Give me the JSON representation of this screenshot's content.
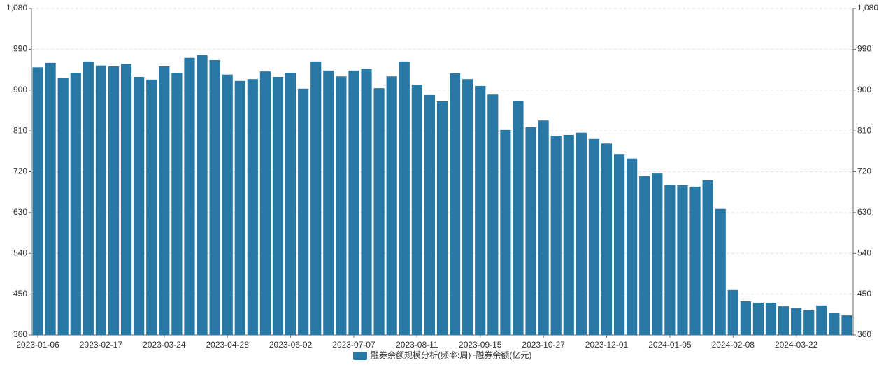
{
  "chart_data": {
    "type": "bar",
    "series": [
      {
        "name": "融券余额规模分析(频率:周)~融券余额(亿元)",
        "color": "#2778a5",
        "values": [
          950,
          960,
          926,
          938,
          963,
          954,
          952,
          958,
          929,
          923,
          952,
          938,
          971,
          977,
          966,
          934,
          920,
          924,
          941,
          929,
          938,
          903,
          963,
          943,
          930,
          943,
          947,
          904,
          930,
          963,
          912,
          889,
          875,
          937,
          924,
          909,
          890,
          812,
          876,
          818,
          833,
          799,
          801,
          806,
          792,
          782,
          759,
          749,
          710,
          716,
          691,
          690,
          687,
          701,
          638,
          459,
          434,
          431,
          431,
          423,
          419,
          414,
          425,
          408,
          403
        ]
      }
    ],
    "categories": [
      "2023-01-06",
      null,
      null,
      null,
      null,
      "2023-02-17",
      null,
      null,
      null,
      null,
      "2023-03-24",
      null,
      null,
      null,
      null,
      "2023-04-28",
      null,
      null,
      null,
      null,
      "2023-06-02",
      null,
      null,
      null,
      null,
      "2023-07-07",
      null,
      null,
      null,
      null,
      "2023-08-11",
      null,
      null,
      null,
      null,
      "2023-09-15",
      null,
      null,
      null,
      null,
      "2023-10-27",
      null,
      null,
      null,
      null,
      "2023-12-01",
      null,
      null,
      null,
      null,
      "2024-01-05",
      null,
      null,
      null,
      null,
      "2024-02-08",
      null,
      null,
      null,
      null,
      "2024-03-22",
      null,
      null,
      null,
      null
    ],
    "ylim": [
      360,
      1080
    ],
    "yticks": [
      360,
      450,
      540,
      630,
      720,
      810,
      900,
      990,
      {
        "value": 1080,
        "label": "1,080"
      }
    ],
    "y2lim": [
      360,
      1080
    ],
    "y2ticks": [
      360,
      450,
      540,
      630,
      720,
      810,
      900,
      990,
      {
        "value": 1080,
        "label": "1,080"
      }
    ],
    "grid": true,
    "legend": "bottom"
  }
}
